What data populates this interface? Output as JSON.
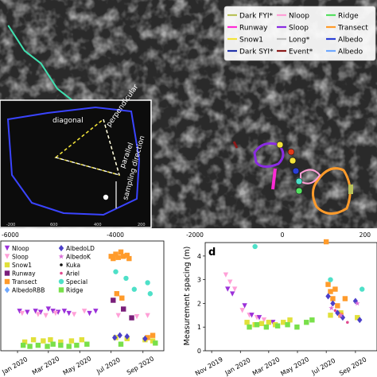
{
  "chart_data": [
    {
      "type": "scatter",
      "panel": "map",
      "background": "satellite-ice-imagery",
      "x_ticks": [
        "-6000",
        "-4000",
        "-2000",
        "0",
        "200"
      ],
      "legend_placement": "top-right",
      "legend": [
        {
          "label": "Dark FYI*",
          "color": "#b9c25a",
          "marker": "line"
        },
        {
          "label": "Nloop",
          "color": "#ff9fd7",
          "marker": "line"
        },
        {
          "label": "Ridge",
          "color": "#55e061",
          "marker": "line"
        },
        {
          "label": "Runway",
          "color": "#ff2bd5",
          "marker": "line"
        },
        {
          "label": "Sloop",
          "color": "#8a2be2",
          "marker": "line"
        },
        {
          "label": "Transect",
          "color": "#ff9b2b",
          "marker": "line"
        },
        {
          "label": "Snow1",
          "color": "#f2e33a",
          "marker": "line"
        },
        {
          "label": "Long*",
          "color": "#ffffff",
          "marker": "line"
        },
        {
          "label": "Albedo",
          "color": "#2b3fd6",
          "marker": "line"
        },
        {
          "label": "Dark SYI*",
          "color": "#2233aa",
          "marker": "line"
        },
        {
          "label": "Event*",
          "color": "#8b1a1a",
          "marker": "line"
        },
        {
          "label": "Albedo",
          "color": "#6fa8ff",
          "marker": "line"
        }
      ],
      "series": [
        {
          "name": "Long*",
          "color": "#40e0b0",
          "x": [
            -7000,
            -6600,
            -6200,
            -5800,
            -5400,
            -5000,
            -4600,
            -4200,
            -3800
          ],
          "y": [
            5200,
            5000,
            4900,
            4700,
            4600,
            4500,
            4400,
            4300,
            4200
          ]
        }
      ],
      "inset": {
        "labels": [
          "diagonal",
          "perpendicular",
          "parallel",
          "sampling direction"
        ],
        "x_ticks": [
          "-200",
          "600",
          "400",
          "200"
        ]
      }
    },
    {
      "type": "scatter",
      "panel": "timeline-left",
      "x_ticks": [
        "Jan 2020",
        "Mar 2020",
        "May 2020",
        "Jul 2020",
        "Sep 2020"
      ],
      "legend_placement": "top-left",
      "legend": [
        {
          "label": "Nloop",
          "color": "#9b30d9",
          "marker": "triangle-down"
        },
        {
          "label": "Sloop",
          "color": "#ff9fd7",
          "marker": "triangle-down"
        },
        {
          "label": "Snow1",
          "color": "#e0e03a",
          "marker": "square"
        },
        {
          "label": "Runway",
          "color": "#7a1f7a",
          "marker": "square"
        },
        {
          "label": "Transect",
          "color": "#ff9b2b",
          "marker": "square"
        },
        {
          "label": "AlbedoRBB",
          "color": "#6fa8ff",
          "marker": "diamond"
        },
        {
          "label": "AlbedoLD",
          "color": "#4b3fc9",
          "marker": "diamond"
        },
        {
          "label": "AlbedoK",
          "color": "#d96fd9",
          "marker": "star"
        },
        {
          "label": "Kuka",
          "color": "#111111",
          "marker": "dot"
        },
        {
          "label": "Ariel",
          "color": "#e04a8f",
          "marker": "dot"
        },
        {
          "label": "Special",
          "color": "#4ee0c8",
          "marker": "circle"
        },
        {
          "label": "Ridge",
          "color": "#79e04a",
          "marker": "square"
        }
      ],
      "series": [
        {
          "name": "Nloop",
          "color": "#9b30d9",
          "marker": "triangle-down",
          "x": [
            "2020-01-05",
            "2020-01-20",
            "2020-02-05",
            "2020-02-15",
            "2020-03-01",
            "2020-03-10",
            "2020-03-20",
            "2020-04-01",
            "2020-04-10",
            "2020-05-20",
            "2020-06-01"
          ],
          "y": [
            1.8,
            1.75,
            1.8,
            1.75,
            1.9,
            1.8,
            1.75,
            1.8,
            1.7,
            1.7,
            1.8
          ]
        },
        {
          "name": "Sloop",
          "color": "#ff9fd7",
          "marker": "triangle-down",
          "x": [
            "2020-01-10",
            "2020-02-10",
            "2020-02-25",
            "2020-03-15",
            "2020-04-20",
            "2020-05-10",
            "2020-07-15",
            "2020-08-20",
            "2020-09-10"
          ],
          "y": [
            1.7,
            1.65,
            1.6,
            1.7,
            1.65,
            1.8,
            1.6,
            1.55,
            1.6
          ]
        },
        {
          "name": "Snow1",
          "color": "#e0e03a",
          "marker": "square",
          "x": [
            "2020-01-15",
            "2020-02-01",
            "2020-02-20",
            "2020-03-05",
            "2020-03-25",
            "2020-04-15",
            "2020-05-05",
            "2020-07-10",
            "2020-08-01",
            "2020-09-05",
            "2020-09-20"
          ],
          "y": [
            0.4,
            0.5,
            0.45,
            0.5,
            0.4,
            0.45,
            0.5,
            0.6,
            0.55,
            0.5,
            0.45
          ]
        },
        {
          "name": "Runway",
          "color": "#7a1f7a",
          "marker": "square",
          "x": [
            "2020-07-05",
            "2020-07-25",
            "2020-08-10"
          ],
          "y": [
            2.3,
            1.9,
            1.5
          ]
        },
        {
          "name": "Transect",
          "color": "#ff9b2b",
          "marker": "square",
          "x": [
            "2020-07-01",
            "2020-07-05",
            "2020-07-10",
            "2020-07-15",
            "2020-07-20",
            "2020-07-25",
            "2020-08-01",
            "2020-08-05",
            "2020-07-12",
            "2020-07-22",
            "2020-09-10",
            "2020-09-20"
          ],
          "y": [
            4.3,
            4.2,
            4.4,
            4.25,
            4.5,
            4.3,
            4.35,
            4.2,
            2.6,
            2.4,
            0.6,
            0.7
          ]
        },
        {
          "name": "AlbedoLD",
          "color": "#4b3fc9",
          "marker": "diamond",
          "x": [
            "2020-07-08",
            "2020-07-18",
            "2020-08-01",
            "2020-09-05"
          ],
          "y": [
            0.6,
            0.7,
            0.65,
            0.55
          ]
        },
        {
          "name": "Special",
          "color": "#4ee0c8",
          "marker": "circle",
          "x": [
            "2020-07-10",
            "2020-07-30",
            "2020-08-15",
            "2020-09-10",
            "2020-09-15"
          ],
          "y": [
            3.6,
            3.3,
            2.8,
            3.1,
            2.6
          ]
        },
        {
          "name": "Ridge",
          "color": "#79e04a",
          "marker": "square",
          "x": [
            "2020-01-12",
            "2020-01-25",
            "2020-02-10",
            "2020-02-28",
            "2020-03-10",
            "2020-03-25",
            "2020-04-10",
            "2020-04-25",
            "2020-05-15",
            "2020-07-20",
            "2020-09-25"
          ],
          "y": [
            0.25,
            0.2,
            0.25,
            0.2,
            0.3,
            0.25,
            0.2,
            0.25,
            0.3,
            0.3,
            0.35
          ]
        }
      ]
    },
    {
      "type": "scatter",
      "panel": "d",
      "panel_letter": "d",
      "ylabel": "Measurement spacing (m)",
      "ylim": [
        0,
        4.5
      ],
      "y_ticks": [
        "0",
        "1",
        "2",
        "3",
        "4"
      ],
      "x_ticks": [
        "Nov 2019",
        "Jan 2020",
        "Mar 2020",
        "May 2020",
        "Jul 2020",
        "Sep 2020"
      ],
      "series": [
        {
          "name": "Sloop",
          "color": "#ff9fd7",
          "marker": "triangle-down",
          "x": [
            "2019-12-01",
            "2019-12-10",
            "2019-12-20",
            "2020-01-05",
            "2020-01-20",
            "2020-02-05",
            "2020-02-20",
            "2020-03-05"
          ],
          "y": [
            3.2,
            2.9,
            2.6,
            1.7,
            1.5,
            1.4,
            1.3,
            1.2
          ]
        },
        {
          "name": "Nloop",
          "color": "#9b30d9",
          "marker": "triangle-down",
          "x": [
            "2019-12-05",
            "2019-12-15",
            "2020-01-10",
            "2020-01-25",
            "2020-02-10",
            "2020-03-10"
          ],
          "y": [
            2.6,
            2.4,
            1.9,
            1.5,
            1.4,
            1.2
          ]
        },
        {
          "name": "Snow1",
          "color": "#e0e03a",
          "marker": "square",
          "x": [
            "2020-01-15",
            "2020-02-01",
            "2020-02-15",
            "2020-03-01",
            "2020-03-15",
            "2020-04-01",
            "2020-04-15",
            "2020-07-10",
            "2020-08-01",
            "2020-09-05"
          ],
          "y": [
            1.2,
            1.1,
            1.15,
            1.2,
            1.1,
            1.2,
            1.3,
            1.5,
            1.6,
            1.4
          ]
        },
        {
          "name": "Ridge",
          "color": "#79e04a",
          "marker": "square",
          "x": [
            "2020-01-20",
            "2020-02-05",
            "2020-02-25",
            "2020-03-20",
            "2020-04-10",
            "2020-04-30",
            "2020-05-20",
            "2020-06-01"
          ],
          "y": [
            1.0,
            1.1,
            1.0,
            1.05,
            1.1,
            1.0,
            1.2,
            1.3
          ]
        },
        {
          "name": "Transect",
          "color": "#ff9b2b",
          "marker": "square",
          "x": [
            "2020-07-01",
            "2020-07-05",
            "2020-07-10",
            "2020-07-15",
            "2020-07-20",
            "2020-07-25",
            "2020-08-01",
            "2020-08-10"
          ],
          "y": [
            4.6,
            2.8,
            2.5,
            2.2,
            2.6,
            1.9,
            1.5,
            2.2
          ]
        },
        {
          "name": "AlbedoLD",
          "color": "#4b3fc9",
          "marker": "diamond",
          "x": [
            "2020-07-05",
            "2020-07-15",
            "2020-07-25",
            "2020-08-05",
            "2020-09-01",
            "2020-09-10"
          ],
          "y": [
            2.3,
            2.0,
            1.6,
            1.4,
            2.1,
            1.3
          ]
        },
        {
          "name": "Special",
          "color": "#4ee0c8",
          "marker": "circle",
          "x": [
            "2020-02-01",
            "2020-07-10",
            "2020-09-15"
          ],
          "y": [
            4.4,
            3.0,
            2.6
          ]
        },
        {
          "name": "AlbedoK",
          "color": "#d96fd9",
          "marker": "star",
          "x": [
            "2020-07-12",
            "2020-08-01",
            "2020-09-05"
          ],
          "y": [
            1.8,
            1.5,
            2.0
          ]
        },
        {
          "name": "Ariel",
          "color": "#e04a8f",
          "marker": "dot",
          "x": [
            "2020-07-20",
            "2020-08-15"
          ],
          "y": [
            1.7,
            1.2
          ]
        }
      ]
    }
  ]
}
